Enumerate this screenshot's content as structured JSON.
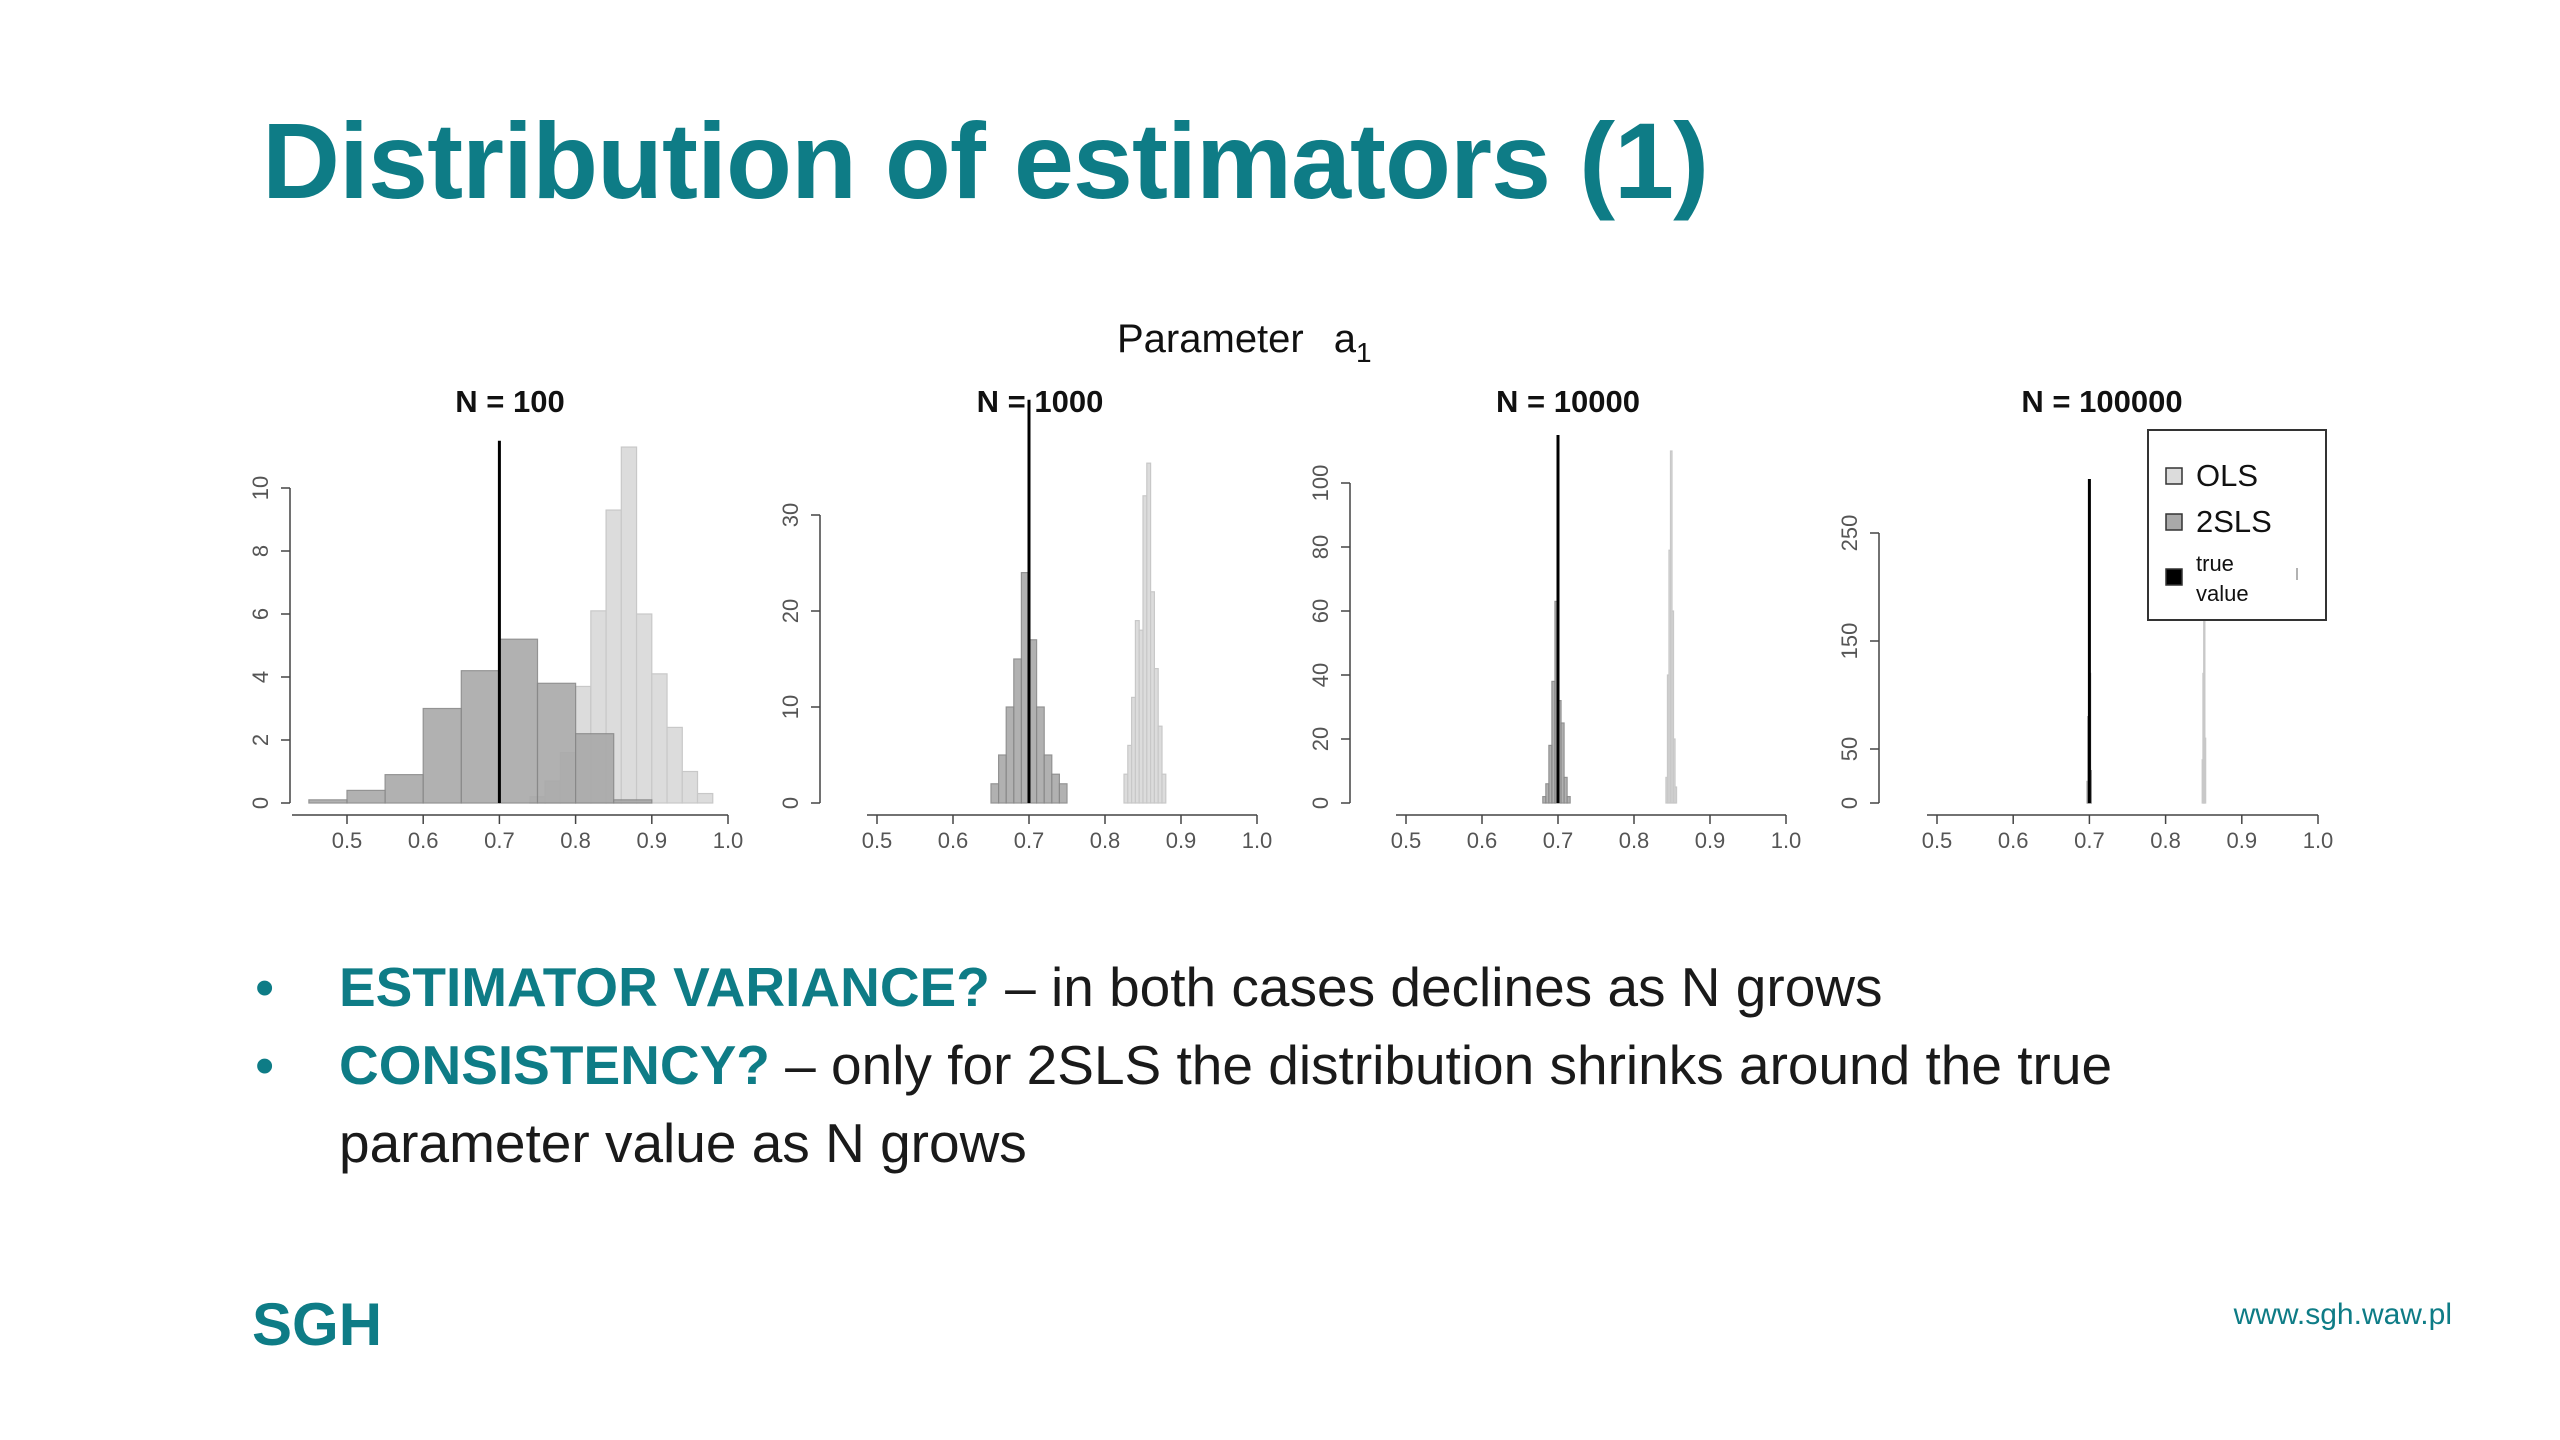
{
  "title": "Distribution of estimators (1)",
  "figure": {
    "title": "Parameter",
    "title_symbol": "a",
    "title_subscript": "1"
  },
  "colors": {
    "accent": "#0e7c86",
    "ols_fill": "#dcdcdc",
    "tsls_fill": "#a9a9a9",
    "true_value_line": "#000000"
  },
  "chart_data": [
    {
      "type": "bar",
      "title": "N =  100",
      "xlim": [
        0.45,
        1.0
      ],
      "ylim": [
        0,
        10
      ],
      "x_ticks": [
        0.5,
        0.6,
        0.7,
        0.8,
        0.9,
        1.0
      ],
      "x_tick_labels": [
        "0.5",
        "0.6",
        "0.7",
        "0.8",
        "0.9",
        "1.0"
      ],
      "y_ticks": [
        0,
        2,
        4,
        6,
        8,
        10
      ],
      "y_tick_labels": [
        "0",
        "2",
        "4",
        "6",
        "8",
        "10"
      ],
      "true_value": 0.7,
      "true_value_line_top": 11.5,
      "series": [
        {
          "name": "OLS",
          "bin_width": 0.02,
          "bins": [
            [
              0.74,
              0.76,
              0.2
            ],
            [
              0.76,
              0.78,
              0.7
            ],
            [
              0.78,
              0.8,
              1.6
            ],
            [
              0.8,
              0.82,
              3.7
            ],
            [
              0.82,
              0.84,
              6.1
            ],
            [
              0.84,
              0.86,
              9.3
            ],
            [
              0.86,
              0.88,
              11.3
            ],
            [
              0.88,
              0.9,
              6.0
            ],
            [
              0.9,
              0.92,
              4.1
            ],
            [
              0.92,
              0.94,
              2.4
            ],
            [
              0.94,
              0.96,
              1.0
            ],
            [
              0.96,
              0.98,
              0.3
            ]
          ]
        },
        {
          "name": "2SLS",
          "bin_width": 0.05,
          "bins": [
            [
              0.45,
              0.5,
              0.1
            ],
            [
              0.5,
              0.55,
              0.4
            ],
            [
              0.55,
              0.6,
              0.9
            ],
            [
              0.6,
              0.65,
              3.0
            ],
            [
              0.65,
              0.7,
              4.2
            ],
            [
              0.7,
              0.75,
              5.2
            ],
            [
              0.75,
              0.8,
              3.8
            ],
            [
              0.8,
              0.85,
              2.2
            ],
            [
              0.85,
              0.9,
              0.1
            ]
          ]
        }
      ]
    },
    {
      "type": "bar",
      "title": "N =  1000",
      "xlim": [
        0.5,
        1.0
      ],
      "ylim": [
        0,
        30
      ],
      "x_ticks": [
        0.5,
        0.6,
        0.7,
        0.8,
        0.9,
        1.0
      ],
      "x_tick_labels": [
        "0.5",
        "0.6",
        "0.7",
        "0.8",
        "0.9",
        "1.0"
      ],
      "y_ticks": [
        0,
        10,
        20,
        30
      ],
      "y_tick_labels": [
        "0",
        "10",
        "20",
        "30"
      ],
      "true_value": 0.7,
      "true_value_line_top": 42,
      "series": [
        {
          "name": "OLS",
          "bin_width": 0.005,
          "bins": [
            [
              0.825,
              0.83,
              3
            ],
            [
              0.83,
              0.835,
              6
            ],
            [
              0.835,
              0.84,
              11
            ],
            [
              0.84,
              0.845,
              19
            ],
            [
              0.845,
              0.85,
              18
            ],
            [
              0.85,
              0.855,
              32
            ],
            [
              0.855,
              0.86,
              37
            ],
            [
              0.86,
              0.865,
              22
            ],
            [
              0.865,
              0.87,
              14
            ],
            [
              0.87,
              0.875,
              8
            ],
            [
              0.875,
              0.88,
              3
            ]
          ]
        },
        {
          "name": "2SLS",
          "bin_width": 0.01,
          "bins": [
            [
              0.65,
              0.66,
              2
            ],
            [
              0.66,
              0.67,
              5
            ],
            [
              0.67,
              0.68,
              10
            ],
            [
              0.68,
              0.69,
              15
            ],
            [
              0.69,
              0.7,
              24
            ],
            [
              0.7,
              0.71,
              17
            ],
            [
              0.71,
              0.72,
              10
            ],
            [
              0.72,
              0.73,
              5
            ],
            [
              0.73,
              0.74,
              3
            ],
            [
              0.74,
              0.75,
              2
            ]
          ]
        }
      ]
    },
    {
      "type": "bar",
      "title": "N =  10000",
      "xlim": [
        0.5,
        1.0
      ],
      "ylim": [
        0,
        100
      ],
      "x_ticks": [
        0.5,
        0.6,
        0.7,
        0.8,
        0.9,
        1.0
      ],
      "x_tick_labels": [
        "0.5",
        "0.6",
        "0.7",
        "0.8",
        "0.9",
        "1.0"
      ],
      "y_ticks": [
        0,
        20,
        40,
        60,
        80,
        100
      ],
      "y_tick_labels": [
        "0",
        "20",
        "40",
        "60",
        "80",
        "100"
      ],
      "true_value": 0.7,
      "true_value_line_top": 115,
      "series": [
        {
          "name": "OLS",
          "bin_width": 0.002,
          "bins": [
            [
              0.842,
              0.844,
              8
            ],
            [
              0.844,
              0.846,
              40
            ],
            [
              0.846,
              0.848,
              79
            ],
            [
              0.848,
              0.85,
              110
            ],
            [
              0.85,
              0.852,
              60
            ],
            [
              0.852,
              0.854,
              20
            ],
            [
              0.854,
              0.856,
              5
            ]
          ]
        },
        {
          "name": "2SLS",
          "bin_width": 0.004,
          "bins": [
            [
              0.68,
              0.684,
              2
            ],
            [
              0.684,
              0.688,
              6
            ],
            [
              0.688,
              0.692,
              18
            ],
            [
              0.692,
              0.696,
              38
            ],
            [
              0.696,
              0.7,
              63
            ],
            [
              0.7,
              0.704,
              32
            ],
            [
              0.704,
              0.708,
              25
            ],
            [
              0.708,
              0.712,
              8
            ],
            [
              0.712,
              0.716,
              2
            ]
          ]
        }
      ]
    },
    {
      "type": "bar",
      "title": "N =  100000",
      "xlim": [
        0.5,
        1.0
      ],
      "ylim": [
        0,
        300
      ],
      "x_ticks": [
        0.5,
        0.6,
        0.7,
        0.8,
        0.9,
        1.0
      ],
      "x_tick_labels": [
        "0.5",
        "0.6",
        "0.7",
        "0.8",
        "0.9",
        "1.0"
      ],
      "y_ticks": [
        0,
        50,
        150,
        250
      ],
      "y_tick_labels": [
        "0",
        "50",
        "150",
        "250"
      ],
      "true_value": 0.7,
      "true_value_line_top": 300,
      "series": [
        {
          "name": "OLS",
          "bin_width": 0.001,
          "bins": [
            [
              0.848,
              0.849,
              40
            ],
            [
              0.849,
              0.85,
              120
            ],
            [
              0.85,
              0.851,
              175
            ],
            [
              0.851,
              0.852,
              60
            ]
          ]
        },
        {
          "name": "2SLS",
          "bin_width": 0.001,
          "bins": [
            [
              0.697,
              0.698,
              20
            ],
            [
              0.698,
              0.699,
              80
            ],
            [
              0.699,
              0.7,
              240
            ],
            [
              0.7,
              0.701,
              120
            ],
            [
              0.701,
              0.702,
              30
            ]
          ]
        }
      ],
      "legend": {
        "position": "top-right",
        "items": [
          {
            "label": "OLS",
            "swatch": "ols"
          },
          {
            "label": "2SLS",
            "swatch": "tsls"
          },
          {
            "label": "true value",
            "label_lines": [
              "true",
              "value"
            ],
            "swatch": "true"
          }
        ]
      }
    }
  ],
  "bullets": [
    {
      "key": "ESTIMATOR VARIANCE?",
      "rest": " – in both cases declines as N grows"
    },
    {
      "key": "CONSISTENCY?",
      "rest": " – only for 2SLS the distribution shrinks around the true parameter value as N grows"
    }
  ],
  "bullet_marker": "•",
  "footer": {
    "logo": "SGH",
    "url": "www.sgh.waw.pl"
  }
}
